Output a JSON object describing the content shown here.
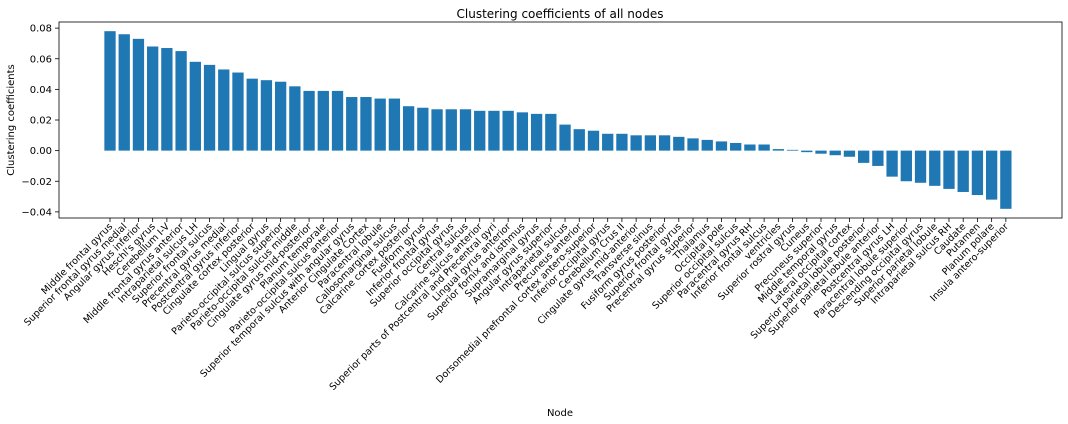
{
  "chart_data": {
    "type": "bar",
    "title": "Clustering coefficients of all nodes",
    "xlabel": "Node",
    "ylabel": "Clustering coefficients",
    "ylim": [
      -0.044,
      0.084
    ],
    "yticks": [
      "0.08",
      "0.06",
      "0.04",
      "0.02",
      "0.00",
      "−0.02",
      "−0.04"
    ],
    "ytick_values": [
      0.08,
      0.06,
      0.04,
      0.02,
      0.0,
      -0.02,
      -0.04
    ],
    "bar_color": "#1f77b4",
    "grid": false,
    "categories": [
      "Middle frontal gyrus",
      "Superior frontal gyrus medial",
      "Angular gyrus inferior",
      "Heschl's gyrus",
      "Cerebellum I-V",
      "Middle frontal gyrus anterior",
      "Intraparietal sulcus LH",
      "Superior frontal sulcus",
      "Precentral gyrus medial",
      "Postcentral gyrus inferior",
      "Cingulate cortex posterior",
      "Lingual gyrus",
      "Parieto-occipital sulcus superior",
      "Parieto-occipital sulcus middle",
      "Cingulate gyrus mid-posterior",
      "Planum temporale",
      "Parieto-occipital sulcus anterior",
      "Superior temporal sulcus with angular gyrus",
      "Anterior Cingulate Cortex",
      "Paracentral lobule",
      "Callosomarginal sulcus",
      "Calcarine cortex posterior",
      "Fusiform gyrus",
      "Inferior frontal gyrus",
      "Superior occipital gyrus",
      "Central sulcus",
      "Calcarine sulcus anterior",
      "Superior parts of Postcentral and Precentral gyri",
      "Lingual gyrus anterior",
      "Superior fornix and isthmus",
      "Supramarginal gyrus",
      "Angular gyrus superior",
      "Intraparietal sulcus",
      "Precuneus anterior",
      "Dorsomedial prefrontal cortex antero-superior",
      "Inferior occipital gyrus",
      "Cerebellum Crus II",
      "Cingulate gyrus mid-anterior",
      "Transverse sinus",
      "Fusiform gyrus posterior",
      "Superior frontal gyrus",
      "Precentral gyrus superior",
      "Thalamus",
      "Occipital pole",
      "Superior occipital sulcus",
      "Paracentral gyrus RH",
      "Inferior frontal sulcus",
      "ventricles",
      "Superior rostral gyrus",
      "Cuneus",
      "Precuneus superior",
      "Middle temporal gyrus",
      "Lateral occipital cortex",
      "Superior parietal lobule posterior",
      "Superior parietal lobule anterior",
      "Postcentral gyrus LH",
      "Paracentral lobule superior",
      "Descending occipital gyrus",
      "Superior parietal lobule",
      "Intraparietal sulcus RH",
      "Caudate",
      "Putamen",
      "Planum polare",
      "Insula antero-superior"
    ],
    "values": [
      0.078,
      0.076,
      0.073,
      0.068,
      0.067,
      0.065,
      0.058,
      0.056,
      0.053,
      0.051,
      0.047,
      0.046,
      0.045,
      0.042,
      0.039,
      0.039,
      0.039,
      0.035,
      0.035,
      0.034,
      0.034,
      0.029,
      0.028,
      0.027,
      0.027,
      0.027,
      0.026,
      0.026,
      0.026,
      0.025,
      0.024,
      0.024,
      0.017,
      0.014,
      0.013,
      0.011,
      0.011,
      0.01,
      0.01,
      0.01,
      0.009,
      0.008,
      0.007,
      0.006,
      0.005,
      0.004,
      0.004,
      0.001,
      0.0005,
      -0.001,
      -0.002,
      -0.003,
      -0.004,
      -0.008,
      -0.01,
      -0.017,
      -0.02,
      -0.021,
      -0.023,
      -0.025,
      -0.027,
      -0.029,
      -0.032,
      -0.038
    ]
  }
}
